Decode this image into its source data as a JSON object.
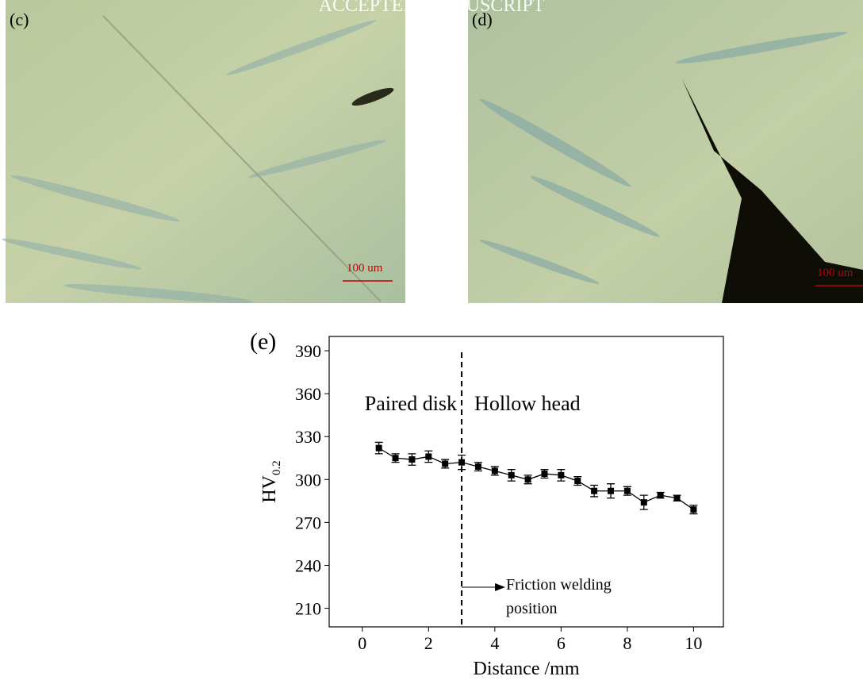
{
  "watermark": "ACCEPTED MANUSCRIPT",
  "panels": [
    {
      "label": "(c)",
      "scale_bar": "100 um"
    },
    {
      "label": "(d)",
      "scale_bar": "100 um"
    }
  ],
  "chart_data": {
    "type": "line",
    "panel_label": "(e)",
    "x_label": "Distance /mm",
    "y_label": {
      "main": "HV",
      "sub": "0.2"
    },
    "x": [
      0.5,
      1,
      1.5,
      2,
      2.5,
      3,
      3.5,
      4,
      4.5,
      5,
      5.5,
      6,
      6.5,
      7,
      7.5,
      8,
      8.5,
      9,
      9.5,
      10
    ],
    "series": [
      {
        "color": "#000000",
        "values": [
          322,
          315,
          314,
          316,
          311,
          312,
          309,
          306,
          303,
          300,
          304,
          303,
          299,
          292,
          292,
          292,
          284,
          289,
          287,
          279
        ],
        "errors": [
          4,
          3,
          4,
          4,
          3,
          5,
          3,
          3,
          4,
          3,
          3,
          4,
          3,
          4,
          5,
          3,
          5,
          2,
          2,
          3
        ]
      }
    ],
    "xlim": [
      -1,
      10.9
    ],
    "ylim": [
      197,
      400
    ],
    "xticks": [
      0,
      2,
      4,
      6,
      8,
      10
    ],
    "yticks": [
      210,
      240,
      270,
      300,
      330,
      360,
      390
    ],
    "divider_x": 3,
    "annotations": [
      "Paired disk",
      "Hollow head",
      "Friction welding",
      "position"
    ]
  }
}
